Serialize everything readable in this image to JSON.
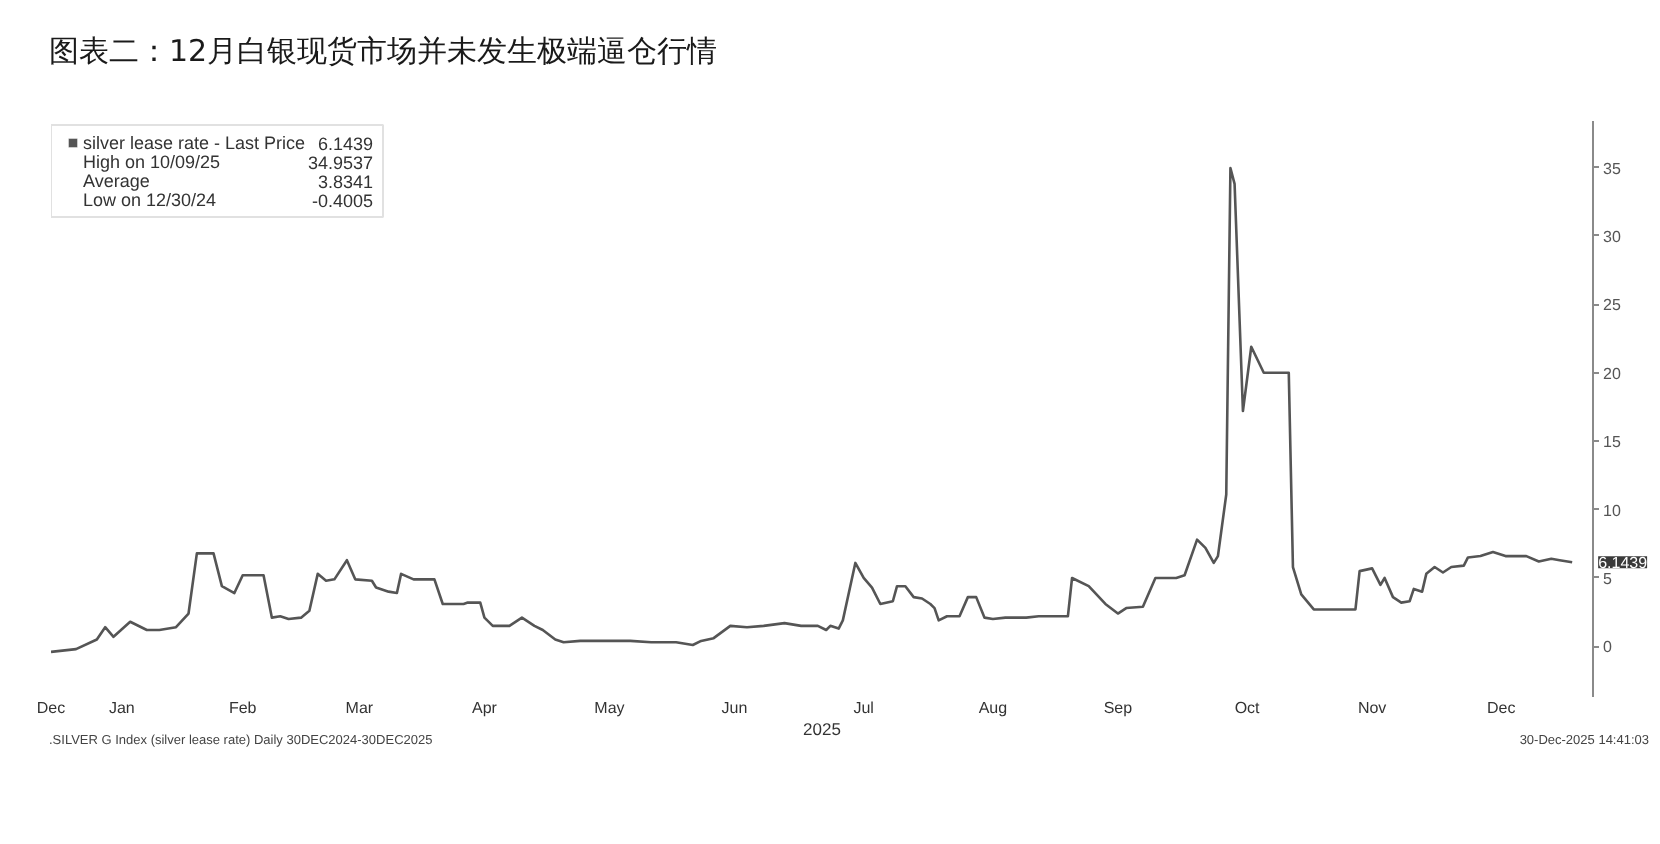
{
  "chart_data": {
    "type": "line",
    "title": "图表二：12月白银现货市场并未发生极端逼仓行情",
    "xlabel": "2025",
    "x": [
      "2024-12-30",
      "2025-01-05",
      "2025-01-10",
      "2025-01-12",
      "2025-01-14",
      "2025-01-18",
      "2025-01-22",
      "2025-01-25",
      "2025-01-29",
      "2025-02-01",
      "2025-02-03",
      "2025-02-07",
      "2025-02-09",
      "2025-02-12",
      "2025-02-14",
      "2025-02-19",
      "2025-02-21",
      "2025-02-23",
      "2025-02-25",
      "2025-02-28",
      "2025-03-02",
      "2025-03-04",
      "2025-03-06",
      "2025-03-08",
      "2025-03-11",
      "2025-03-13",
      "2025-03-17",
      "2025-03-18",
      "2025-03-21",
      "2025-03-23",
      "2025-03-24",
      "2025-03-27",
      "2025-04-01",
      "2025-04-03",
      "2025-04-08",
      "2025-04-09",
      "2025-04-12",
      "2025-04-13",
      "2025-04-15",
      "2025-04-19",
      "2025-04-22",
      "2025-04-25",
      "2025-04-27",
      "2025-04-30",
      "2025-05-02",
      "2025-05-06",
      "2025-05-12",
      "2025-05-18",
      "2025-05-23",
      "2025-05-29",
      "2025-06-02",
      "2025-06-04",
      "2025-06-07",
      "2025-06-11",
      "2025-06-15",
      "2025-06-19",
      "2025-06-24",
      "2025-06-28",
      "2025-07-02",
      "2025-07-04",
      "2025-07-05",
      "2025-07-07",
      "2025-07-08",
      "2025-07-11",
      "2025-07-13",
      "2025-07-15",
      "2025-07-17",
      "2025-07-20",
      "2025-07-21",
      "2025-07-23",
      "2025-07-25",
      "2025-07-27",
      "2025-07-29",
      "2025-07-30",
      "2025-07-31",
      "2025-08-02",
      "2025-08-05",
      "2025-08-07",
      "2025-08-09",
      "2025-08-11",
      "2025-08-13",
      "2025-08-16",
      "2025-08-21",
      "2025-08-24",
      "2025-08-31",
      "2025-09-01",
      "2025-09-05",
      "2025-09-09",
      "2025-09-12",
      "2025-09-14",
      "2025-09-18",
      "2025-09-21",
      "2025-09-26",
      "2025-09-28",
      "2025-10-01",
      "2025-10-03",
      "2025-10-05",
      "2025-10-06",
      "2025-10-08",
      "2025-10-09",
      "2025-10-10",
      "2025-10-12",
      "2025-10-14",
      "2025-10-17",
      "2025-10-23",
      "2025-10-24",
      "2025-10-26",
      "2025-10-29",
      "2025-11-08",
      "2025-11-09",
      "2025-11-12",
      "2025-11-14",
      "2025-11-15",
      "2025-11-17",
      "2025-11-19",
      "2025-11-21",
      "2025-11-22",
      "2025-11-24",
      "2025-11-25",
      "2025-11-27",
      "2025-11-29",
      "2025-12-01",
      "2025-12-04",
      "2025-12-05",
      "2025-12-08",
      "2025-12-11",
      "2025-12-14",
      "2025-12-19",
      "2025-12-22",
      "2025-12-25",
      "2025-12-27",
      "2025-12-30"
    ],
    "series": [
      {
        "name": "silver lease rate - Last Price",
        "color": "#555555",
        "values": [
          -0.4005,
          -0.2,
          0.5,
          1.4,
          0.7,
          1.8,
          1.2,
          1.2,
          1.4,
          2.4,
          6.8,
          6.8,
          4.4,
          3.9,
          5.2,
          5.2,
          2.1,
          2.2,
          2.0,
          2.1,
          2.6,
          5.3,
          4.8,
          4.9,
          6.3,
          4.9,
          4.8,
          4.3,
          4.0,
          3.9,
          5.3,
          4.9,
          4.9,
          3.1,
          3.1,
          3.2,
          3.2,
          2.1,
          1.5,
          1.5,
          2.1,
          1.5,
          1.2,
          0.5,
          0.3,
          0.4,
          0.4,
          0.4,
          0.3,
          0.3,
          0.1,
          0.4,
          0.6,
          1.5,
          1.4,
          1.5,
          1.7,
          1.5,
          1.5,
          1.2,
          1.5,
          1.3,
          1.9,
          6.1,
          5.0,
          4.3,
          3.1,
          3.3,
          4.4,
          4.4,
          3.6,
          3.5,
          3.1,
          2.8,
          1.9,
          2.2,
          2.2,
          3.6,
          3.6,
          2.1,
          2.0,
          2.1,
          2.1,
          2.2,
          2.2,
          5.0,
          4.4,
          3.1,
          2.4,
          2.8,
          2.9,
          5.0,
          5.0,
          5.2,
          7.8,
          7.2,
          6.1,
          6.6,
          11.1,
          34.9537,
          33.8,
          17.2,
          21.9,
          20.0,
          20.0,
          5.8,
          3.8,
          2.7,
          2.7,
          5.5,
          5.7,
          4.5,
          5.0,
          3.6,
          3.2,
          3.3,
          4.2,
          4.0,
          5.3,
          5.8,
          5.4,
          5.8,
          5.9,
          6.5,
          6.6,
          6.9,
          6.6,
          6.6,
          6.2,
          6.4,
          6.3,
          6.1439
        ]
      }
    ],
    "xlim": [
      "2024-12-30",
      "2026-01-04"
    ],
    "xticks": [
      {
        "value": "2024-12-30",
        "label": "Dec"
      },
      {
        "value": "2025-01-16",
        "label": "Jan"
      },
      {
        "value": "2025-02-14",
        "label": "Feb"
      },
      {
        "value": "2025-03-14",
        "label": "Mar"
      },
      {
        "value": "2025-04-13",
        "label": "Apr"
      },
      {
        "value": "2025-05-13",
        "label": "May"
      },
      {
        "value": "2025-06-12",
        "label": "Jun"
      },
      {
        "value": "2025-07-13",
        "label": "Jul"
      },
      {
        "value": "2025-08-13",
        "label": "Aug"
      },
      {
        "value": "2025-09-12",
        "label": "Sep"
      },
      {
        "value": "2025-10-13",
        "label": "Oct"
      },
      {
        "value": "2025-11-12",
        "label": "Nov"
      },
      {
        "value": "2025-12-13",
        "label": "Dec"
      }
    ],
    "ylim": [
      -3.7,
      38.4
    ],
    "yticks": [
      0,
      5,
      10,
      15,
      20,
      25,
      30,
      35
    ],
    "grid": false,
    "legend": "top left",
    "annotations": [
      "6.1439",
      "High on 10/09/25",
      "34.9537",
      "Average",
      "3.8341",
      "Low on 12/30/24",
      "-0.4005",
      {
        "text": "6.1439",
        "x": "2025-12-30",
        "y": 6.1439
      },
      ".SILVER G Index (silver lease rate) Daily 30DEC2024-30DEC2025",
      "30-Dec-2025 14:41:03"
    ]
  }
}
